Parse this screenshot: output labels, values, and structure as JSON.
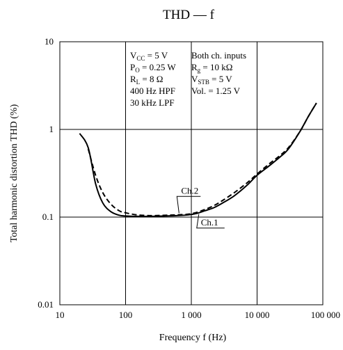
{
  "chart_data": {
    "type": "line",
    "title": "THD — f",
    "xlabel": "Frequency  f  (Hz)",
    "ylabel": "Total harmonic distortion  THD  (%)",
    "x_scale": "log",
    "y_scale": "log",
    "xlim": [
      10,
      100000
    ],
    "ylim": [
      0.01,
      10
    ],
    "grid": true,
    "x_ticks": [
      {
        "value": 10,
        "label": "10"
      },
      {
        "value": 100,
        "label": "100"
      },
      {
        "value": 1000,
        "label": "1 000"
      },
      {
        "value": 10000,
        "label": "10 000"
      },
      {
        "value": 100000,
        "label": "100 000"
      }
    ],
    "y_ticks": [
      {
        "value": 0.01,
        "label": "0.01"
      },
      {
        "value": 0.1,
        "label": "0.1"
      },
      {
        "value": 1,
        "label": "1"
      },
      {
        "value": 10,
        "label": "10"
      }
    ],
    "conditions": {
      "left": [
        {
          "main": "V",
          "sub": "CC",
          "rest": " = 5 V"
        },
        {
          "main": "P",
          "sub": "O",
          "rest": " = 0.25 W"
        },
        {
          "main": "R",
          "sub": "L",
          "rest": " = 8 Ω"
        },
        {
          "main": "400 Hz HPF",
          "sub": "",
          "rest": ""
        },
        {
          "main": "30 kHz LPF",
          "sub": "",
          "rest": ""
        }
      ],
      "right": [
        {
          "main": "Both ch. inputs",
          "sub": "",
          "rest": ""
        },
        {
          "main": "R",
          "sub": "g",
          "rest": " = 10 kΩ"
        },
        {
          "main": "V",
          "sub": "STB",
          "rest": " = 5 V"
        },
        {
          "main": "Vol. = 1.25 V",
          "sub": "",
          "rest": ""
        }
      ]
    },
    "series": [
      {
        "name": "Ch.1",
        "style": "solid",
        "x": [
          20,
          27,
          35,
          45,
          60,
          80,
          100,
          150,
          250,
          400,
          600,
          900,
          1200,
          1600,
          2200,
          3000,
          4500,
          7000,
          10000,
          15000,
          22000,
          30000,
          45000,
          60000,
          80000
        ],
        "y": [
          0.9,
          0.62,
          0.24,
          0.145,
          0.115,
          0.105,
          0.103,
          0.102,
          0.102,
          0.103,
          0.104,
          0.106,
          0.11,
          0.118,
          0.128,
          0.145,
          0.175,
          0.23,
          0.3,
          0.38,
          0.48,
          0.6,
          0.95,
          1.4,
          2.0
        ]
      },
      {
        "name": "Ch.2",
        "style": "dashed",
        "x": [
          27,
          35,
          45,
          60,
          80,
          100,
          150,
          250,
          400,
          600,
          900,
          1200,
          1600,
          2200,
          3000,
          4500,
          7000,
          10000,
          15000,
          22000,
          30000,
          45000,
          60000,
          80000
        ],
        "y": [
          0.6,
          0.3,
          0.19,
          0.14,
          0.118,
          0.112,
          0.106,
          0.104,
          0.105,
          0.106,
          0.108,
          0.113,
          0.122,
          0.135,
          0.155,
          0.19,
          0.245,
          0.31,
          0.4,
          0.5,
          0.62,
          0.95,
          1.4,
          2.0
        ]
      }
    ],
    "callouts": [
      {
        "series": "Ch.2",
        "label": "Ch.2",
        "x": 650,
        "y": 0.107
      },
      {
        "series": "Ch.1",
        "label": "Ch.1",
        "x": 1300,
        "y": 0.112
      }
    ]
  }
}
